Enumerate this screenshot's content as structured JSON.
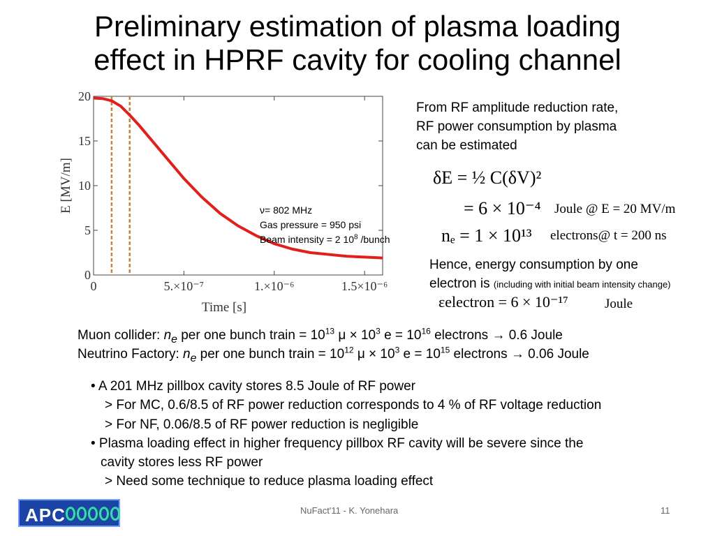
{
  "title": {
    "line1": "Preliminary estimation of plasma loading",
    "line2": "effect in HPRF cavity for cooling channel"
  },
  "annotation": {
    "freq": "ν= 802 MHz",
    "pressure": "Gas pressure = 950 psi",
    "beam_prefix": "Beam intensity = 2 10",
    "beam_exp": "8",
    "beam_suffix": " /bunch"
  },
  "chart_data": {
    "type": "line",
    "title": "",
    "xlabel": "Time [s]",
    "ylabel": "E [MV/m]",
    "xlim": [
      0,
      1.6e-06
    ],
    "ylim": [
      0,
      20
    ],
    "xticks": [
      {
        "value": 0,
        "label": "0"
      },
      {
        "value": 5e-07,
        "label": "5.×10⁻⁷"
      },
      {
        "value": 1e-06,
        "label": "1.×10⁻⁶"
      },
      {
        "value": 1.5e-06,
        "label": "1.5×10⁻⁶"
      }
    ],
    "yticks": [
      {
        "value": 0,
        "label": "0"
      },
      {
        "value": 5,
        "label": "5"
      },
      {
        "value": 10,
        "label": "10"
      },
      {
        "value": 15,
        "label": "15"
      },
      {
        "value": 20,
        "label": "20"
      }
    ],
    "vlines": [
      1e-07,
      2e-07
    ],
    "series": [
      {
        "name": "E",
        "color": "#e0201c",
        "x": [
          0,
          5e-08,
          1e-07,
          1.5e-07,
          2e-07,
          2.5e-07,
          3e-07,
          3.5e-07,
          4e-07,
          5e-07,
          6e-07,
          7e-07,
          8e-07,
          9e-07,
          1e-06,
          1.1e-06,
          1.2e-06,
          1.3e-06,
          1.4e-06,
          1.5e-06,
          1.6e-06
        ],
        "values": [
          19.8,
          19.75,
          19.5,
          18.9,
          17.9,
          16.8,
          15.6,
          14.4,
          13.2,
          10.8,
          8.7,
          6.9,
          5.5,
          4.4,
          3.5,
          2.9,
          2.5,
          2.3,
          2.1,
          2.0,
          1.9
        ]
      }
    ]
  },
  "right": {
    "intro1": "From RF amplitude reduction rate,",
    "intro2": "RF power consumption by plasma",
    "intro3": "can be estimated",
    "eq_dE": "δE = ½ C(δV)²",
    "eq_val": "= 6 × 10⁻⁴",
    "eq_val_unit": "Joule @ E = 20 MV/m",
    "eq_ne": "nₑ = 1 × 10¹³",
    "eq_ne_unit": "electrons@  t = 200 ns",
    "hence1": "Hence, energy consumption by one",
    "hence2": "electron is ",
    "hence_note": "(including with initial beam intensity change)",
    "eq_eps": "εelectron = 6 × 10⁻¹⁷",
    "eq_eps_unit": "Joule"
  },
  "mc": {
    "l1_a": "Muon collider: ",
    "l1_n": "n",
    "l1_e": "e",
    "l1_b": " per one bunch train = 10",
    "l1_e1": "13",
    "l1_c": " μ × 10",
    "l1_e2": "3",
    "l1_d": " e = 10",
    "l1_e3": "16",
    "l1_f": " electrons → 0.6 Joule",
    "l2_a": "Neutrino Factory: ",
    "l2_b": " per one bunch train = 10",
    "l2_e1": "12",
    "l2_c": " μ × 10",
    "l2_e2": "3",
    "l2_d": " e = 10",
    "l2_e3": "15",
    "l2_f": " electrons → 0.06 Joule"
  },
  "bullets": {
    "b1": "• A 201 MHz pillbox cavity stores 8.5 Joule of RF power",
    "b1a": "> For MC, 0.6/8.5 of RF power reduction corresponds to 4 % of RF voltage reduction",
    "b1b": "> For NF, 0.06/8.5 of RF power reduction is negligible",
    "b2": "• Plasma loading effect in higher frequency pillbox RF cavity will be severe since the",
    "b2c": "cavity stores less RF power",
    "b2a": "> Need some technique to reduce plasma loading effect"
  },
  "footer": {
    "logo": "APC",
    "center": "NuFact'11 - K. Yonehara",
    "page": "11"
  }
}
